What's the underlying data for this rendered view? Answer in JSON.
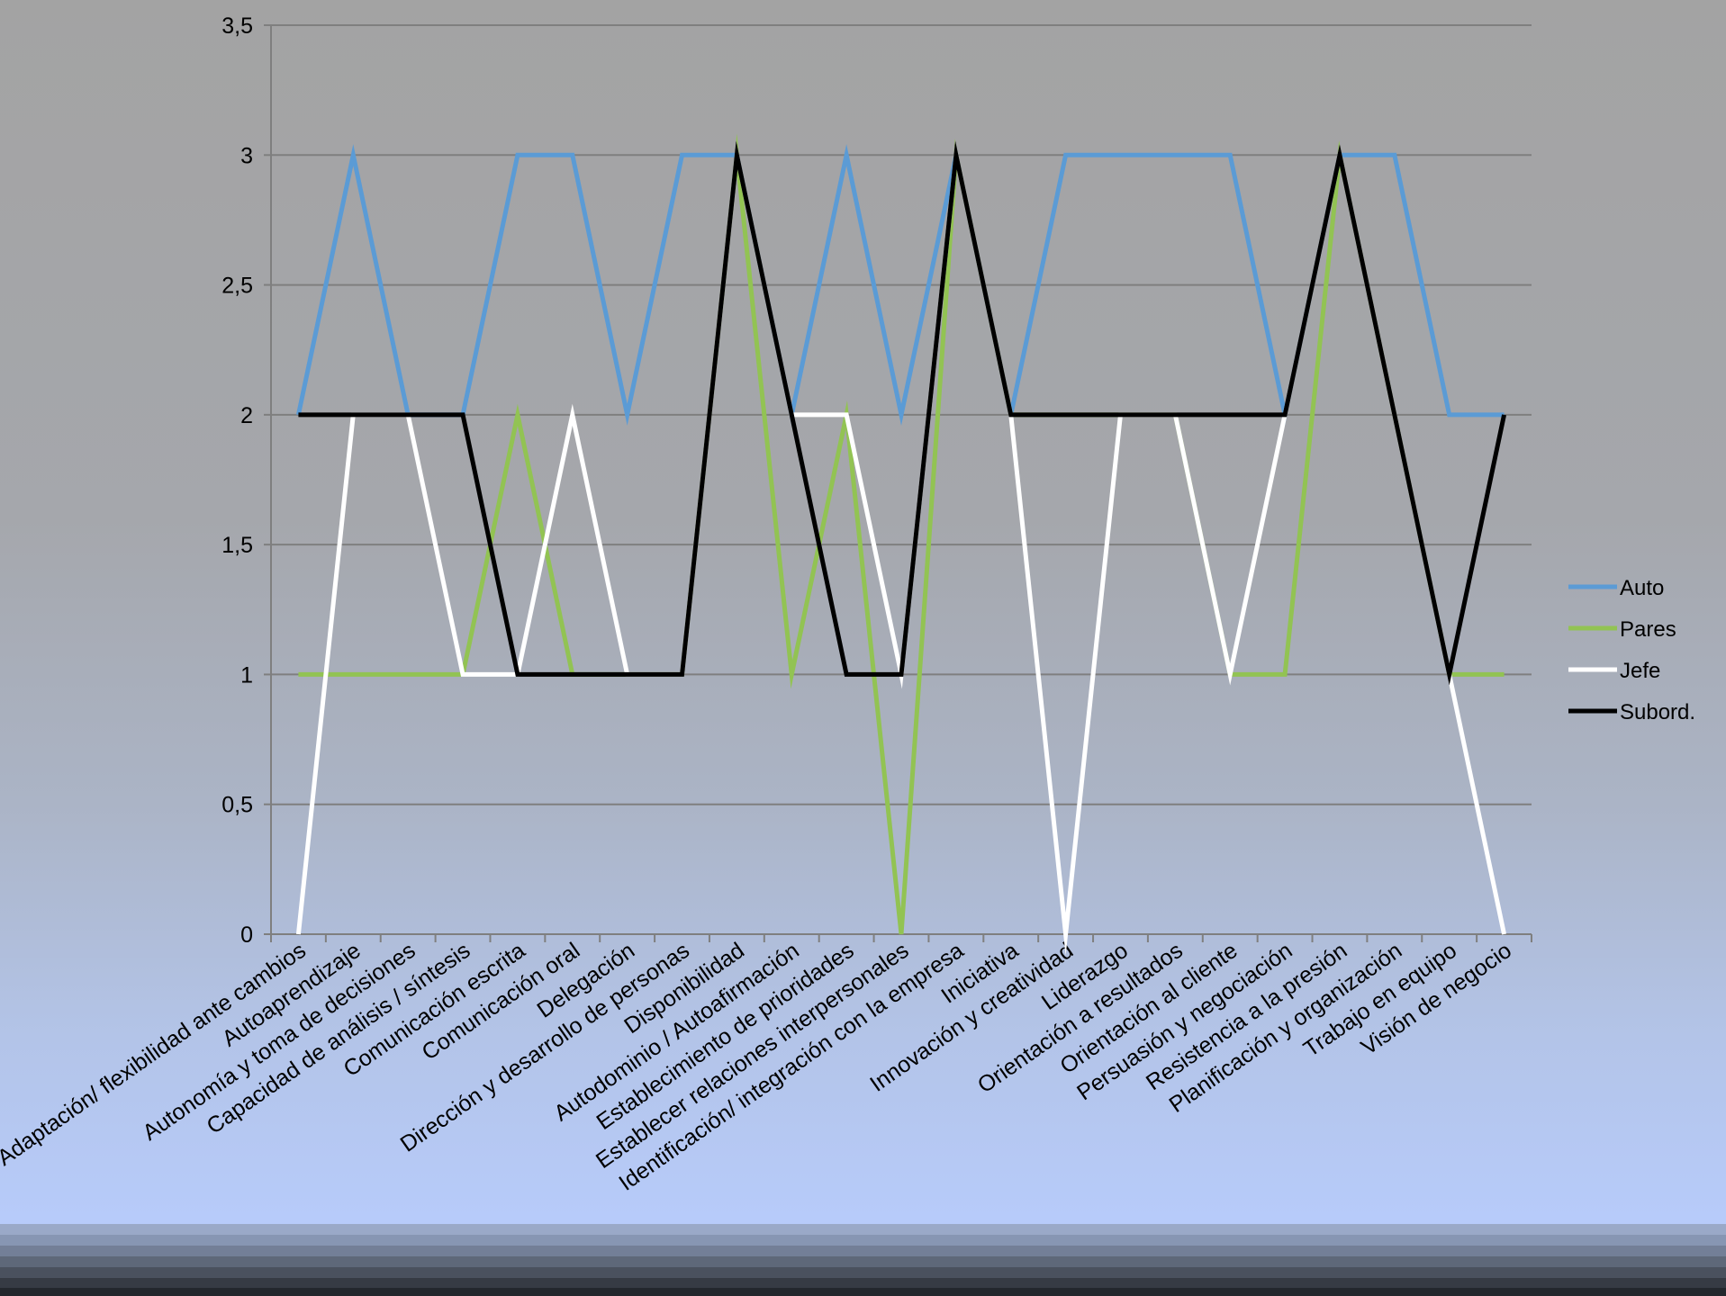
{
  "chart_data": {
    "type": "line",
    "ylim": [
      0,
      3.5
    ],
    "y_ticks": [
      "0",
      "0,5",
      "1",
      "1,5",
      "2",
      "2,5",
      "3",
      "3,5"
    ],
    "grid": "horizontal",
    "legend_position": "right",
    "categories": [
      "Adaptación/ flexibilidad ante cambios",
      "Autoaprendizaje",
      "Autonomía y toma de decisiones",
      "Capacidad de análisis / síntesis",
      "Comunicación escrita",
      "Comunicación oral",
      "Delegación",
      "Dirección y desarrollo de personas",
      "Disponibilidad",
      "Autodominio / Autoafirmación",
      "Establecimiento de prioridades",
      "Establecer relaciones interpersonales",
      "Identificación/ integración con la empresa",
      "Iniciativa",
      "Innovación y creatividad",
      "Liderazgo",
      "Orientación a resultados",
      "Orientación al cliente",
      "Persuasión y negociación",
      "Resistencia a la presión",
      "Planificación y organización",
      "Trabajo en equipo",
      "Visión de negocio"
    ],
    "series": [
      {
        "name": "Auto",
        "color": "#5b9bd5",
        "values": [
          2,
          3,
          2,
          2,
          3,
          3,
          2,
          3,
          3,
          2,
          3,
          2,
          3,
          2,
          3,
          3,
          3,
          3,
          2,
          3,
          3,
          2,
          2
        ]
      },
      {
        "name": "Pares",
        "color": "#92c353",
        "values": [
          1,
          1,
          1,
          1,
          2,
          1,
          1,
          1,
          3,
          1,
          2,
          0,
          3,
          2,
          2,
          2,
          2,
          1,
          1,
          3,
          2,
          1,
          1
        ]
      },
      {
        "name": "Jefe",
        "color": "#ffffff",
        "values": [
          0,
          2,
          2,
          1,
          1,
          2,
          1,
          1,
          3,
          2,
          2,
          1,
          3,
          2,
          0,
          2,
          2,
          1,
          2,
          3,
          2,
          1,
          0
        ]
      },
      {
        "name": "Subord.",
        "color": "#000000",
        "values": [
          2,
          2,
          2,
          2,
          1,
          1,
          1,
          1,
          3,
          2,
          1,
          1,
          3,
          2,
          2,
          2,
          2,
          2,
          2,
          3,
          2,
          1,
          2
        ]
      }
    ]
  }
}
